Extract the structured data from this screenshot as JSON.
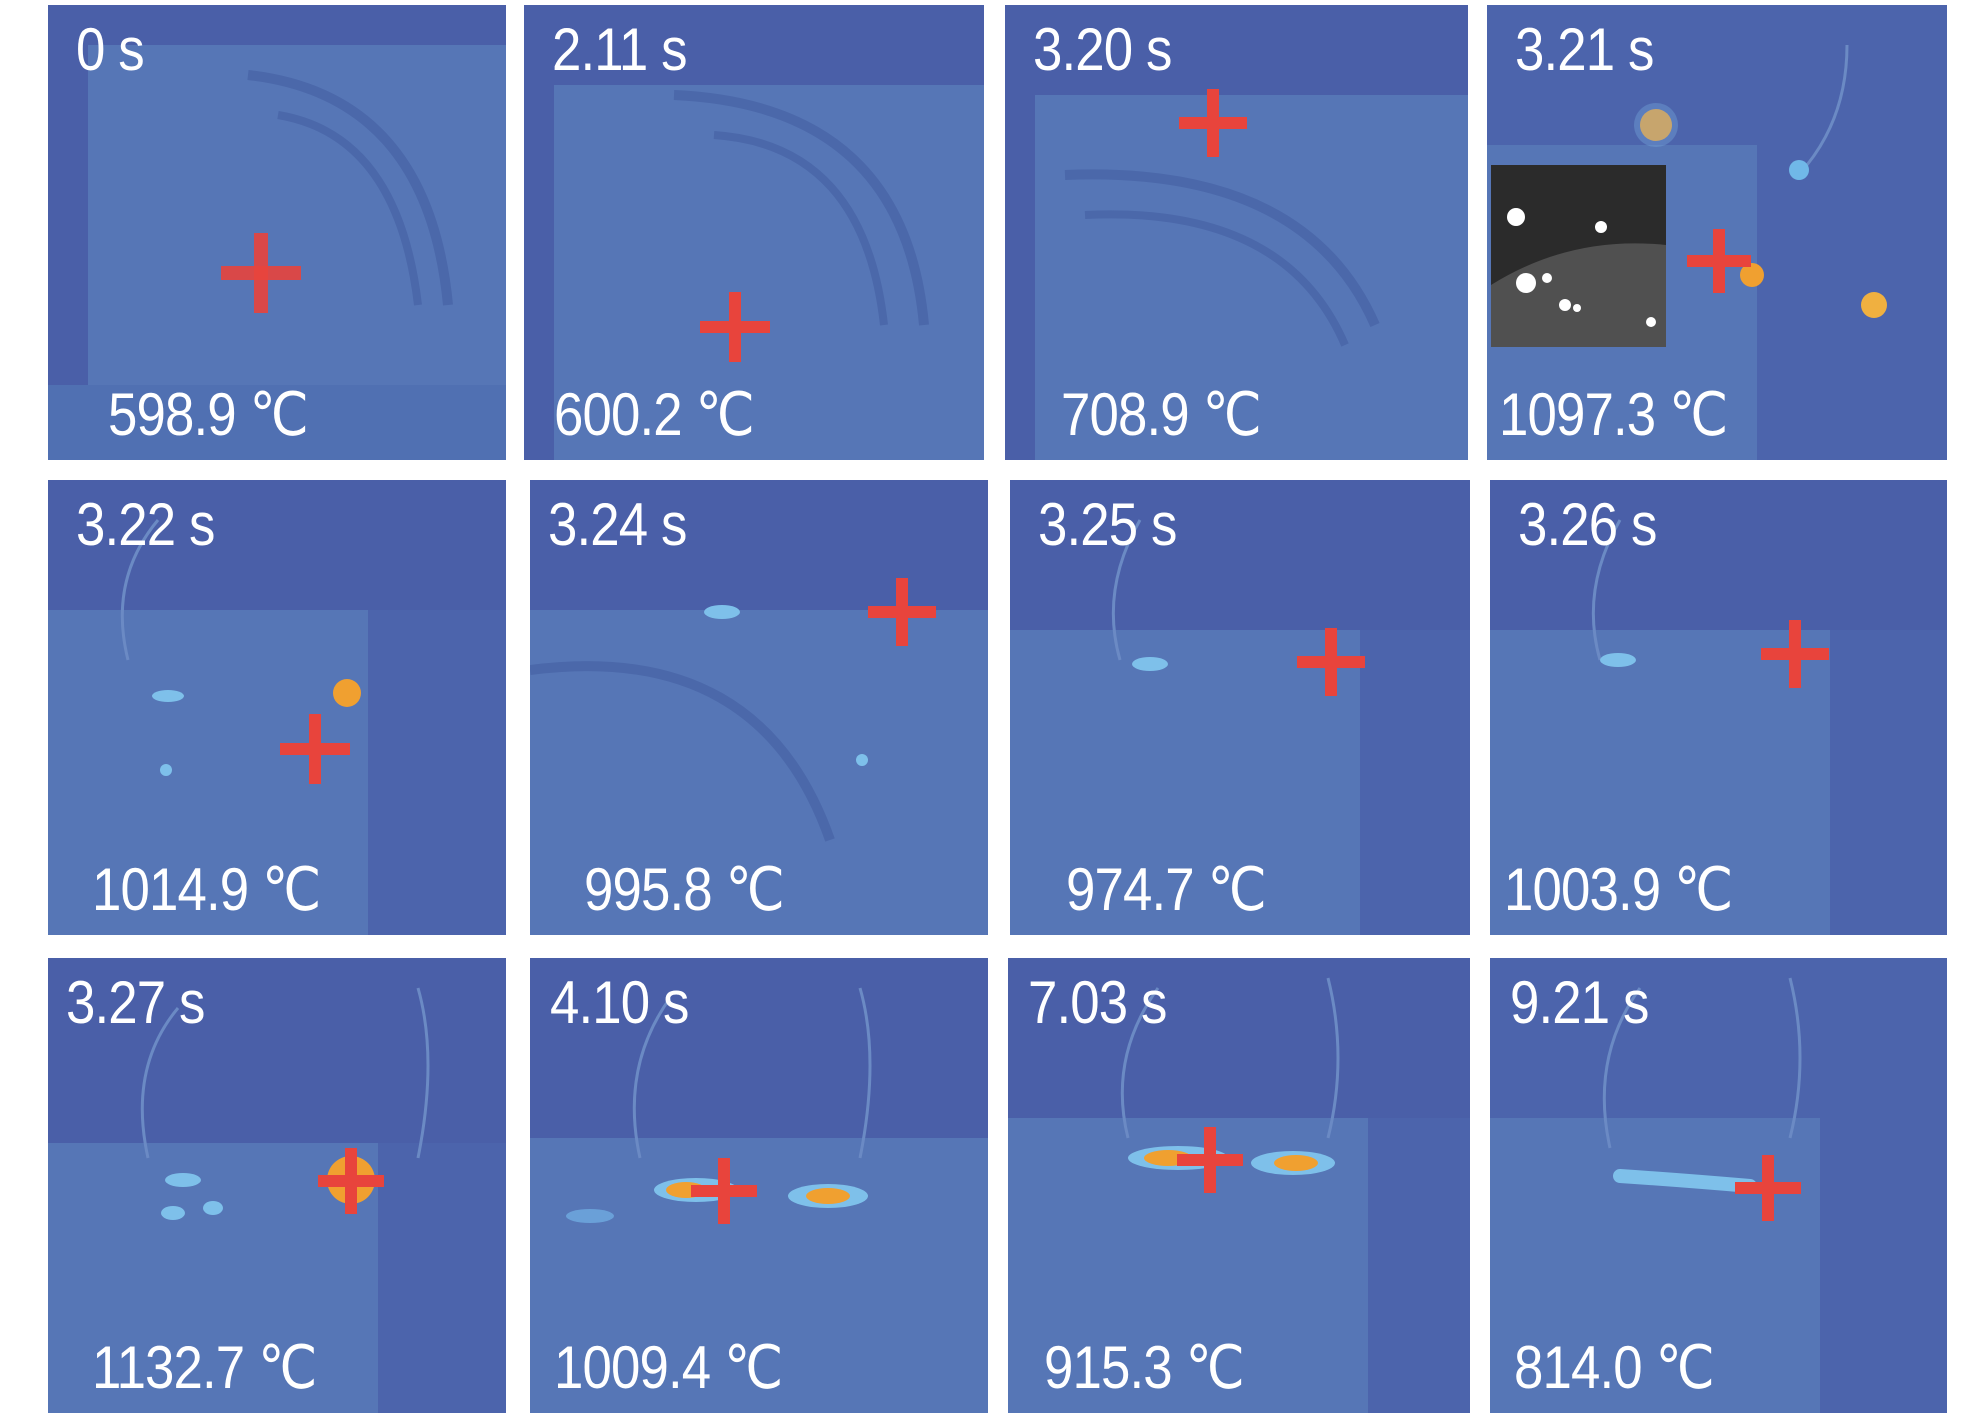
{
  "frames": [
    {
      "time": "0 s",
      "temperature": "598.9 ℃"
    },
    {
      "time": "2.11 s",
      "temperature": "600.2 ℃"
    },
    {
      "time": "3.20 s",
      "temperature": "708.9 ℃"
    },
    {
      "time": "3.21 s",
      "temperature": "1097.3 ℃"
    },
    {
      "time": "3.22 s",
      "temperature": "1014.9 ℃"
    },
    {
      "time": "3.24 s",
      "temperature": "995.8 ℃"
    },
    {
      "time": "3.25 s",
      "temperature": "974.7 ℃"
    },
    {
      "time": "3.26 s",
      "temperature": "1003.9 ℃"
    },
    {
      "time": "3.27 s",
      "temperature": "1132.7 ℃"
    },
    {
      "time": "4.10 s",
      "temperature": "1009.4 ℃"
    },
    {
      "time": "7.03 s",
      "temperature": "915.3 ℃"
    },
    {
      "time": "9.21 s",
      "temperature": "814.0 ℃"
    }
  ],
  "colors": {
    "background": "#4a5fa8",
    "sample": "#5a78b8",
    "crosshair": "#e8443c",
    "hot_spot": "#f0a030"
  }
}
